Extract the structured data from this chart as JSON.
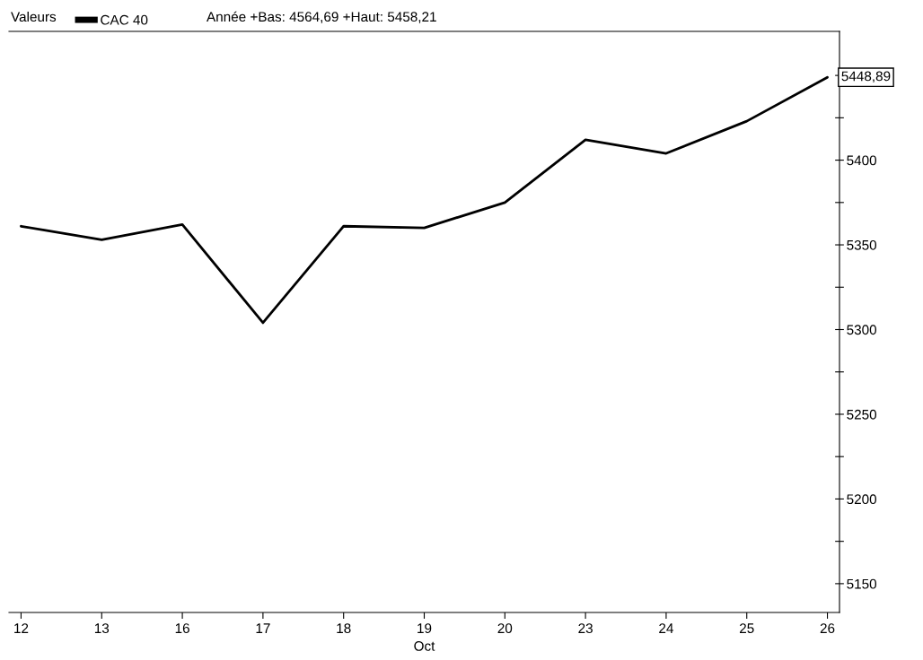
{
  "chart_data": {
    "type": "line",
    "legend_title": "Valeurs",
    "legend": "top left",
    "xlabel": "Oct",
    "categories": [
      "12",
      "13",
      "16",
      "17",
      "18",
      "19",
      "20",
      "23",
      "24",
      "25",
      "26"
    ],
    "series": [
      {
        "name": "CAC 40",
        "color": "#000000",
        "values": [
          5361,
          5353,
          5362,
          5304,
          5361,
          5360,
          5375,
          5412,
          5404,
          5423,
          5448.89
        ],
        "value_labels": [
          null,
          null,
          null,
          null,
          null,
          null,
          null,
          null,
          null,
          null,
          "5448,89"
        ]
      }
    ],
    "annotations": [
      "Année +Bas: 4564,69 +Haut: 5458,21"
    ],
    "ylim": [
      5133,
      5476
    ],
    "yticks": [
      5150,
      {
        "value": 5175,
        "label": null
      },
      5200,
      {
        "value": 5225,
        "label": null
      },
      5250,
      {
        "value": 5275,
        "label": null
      },
      5300,
      {
        "value": 5325,
        "label": null
      },
      5350,
      {
        "value": 5375,
        "label": null
      },
      5400,
      {
        "value": 5425,
        "label": null
      },
      {
        "value": 5450,
        "label": null
      }
    ],
    "grid": false,
    "marker": "none",
    "line_style": "solid"
  }
}
